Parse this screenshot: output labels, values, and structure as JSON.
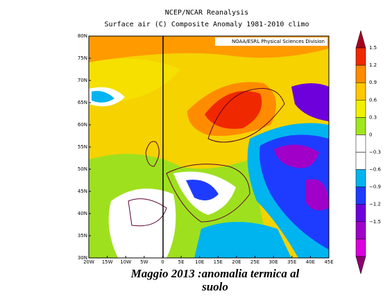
{
  "header": {
    "line1": "NCEP/NCAR Reanalysis",
    "line2": "Surface air (C) Composite Anomaly 1981-2010 climo"
  },
  "credit": "NOAA/ESRL Physical Sciences Division",
  "lat_labels": [
    "80N",
    "75N",
    "70N",
    "65N",
    "60N",
    "55N",
    "50N",
    "45N",
    "40N",
    "35N",
    "30N"
  ],
  "lon_labels": [
    "20W",
    "15W",
    "10W",
    "5W",
    "0",
    "5E",
    "10E",
    "15E",
    "20E",
    "25E",
    "30E",
    "35E",
    "40E",
    "45E"
  ],
  "colorbar": {
    "labels": [
      "1.5",
      "1.2",
      "0.9",
      "0.6",
      "0.3",
      "0",
      "−0.3",
      "−0.6",
      "−0.9",
      "−1.2",
      "−1.5"
    ],
    "colors": [
      "#a8001e",
      "#f02800",
      "#ff8c00",
      "#ffc800",
      "#f0f000",
      "#a0e61e",
      "#ffffff",
      "#ffffff",
      "#00b4f0",
      "#1e3cff",
      "#6e00dc",
      "#a000c8",
      "#dc00dc",
      "#8c006e"
    ]
  },
  "caption": {
    "line1": "Maggio 2013 :anomalia termica al",
    "line2": "suolo"
  }
}
